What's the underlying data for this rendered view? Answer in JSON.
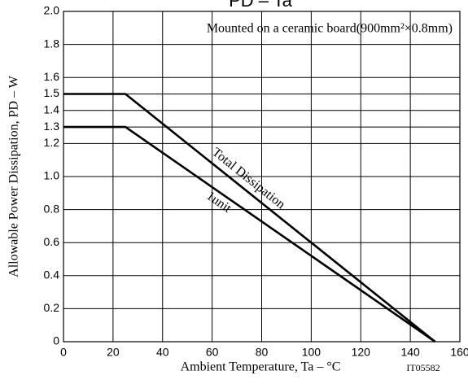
{
  "chart_data": {
    "type": "line",
    "title": "PD – Ta",
    "x_label": "Ambient Temperature, Ta – °C",
    "y_label": "Allowable Power Dissipation, PD – W",
    "annotation": "Mounted on a ceramic board(900mm²×0.8mm)",
    "code": "IT05582",
    "x": [
      0,
      25,
      150
    ],
    "series": [
      {
        "name": "Total Dissipation",
        "color": "#000000",
        "values": [
          1.5,
          1.5,
          0
        ]
      },
      {
        "name": "1unit",
        "color": "#000000",
        "values": [
          1.3,
          1.3,
          0
        ]
      }
    ],
    "xlim": [
      0,
      160
    ],
    "xticks": [
      0,
      20,
      40,
      60,
      80,
      100,
      120,
      140,
      160
    ],
    "ylim": [
      0,
      2
    ],
    "yticks": [
      0,
      0.2,
      0.4,
      0.6,
      0.8,
      {
        "value": 1,
        "label": "1.0"
      },
      1.2,
      1.3,
      1.4,
      1.5,
      1.6,
      1.8,
      {
        "value": 2,
        "label": "2.0"
      }
    ],
    "grid": true
  }
}
